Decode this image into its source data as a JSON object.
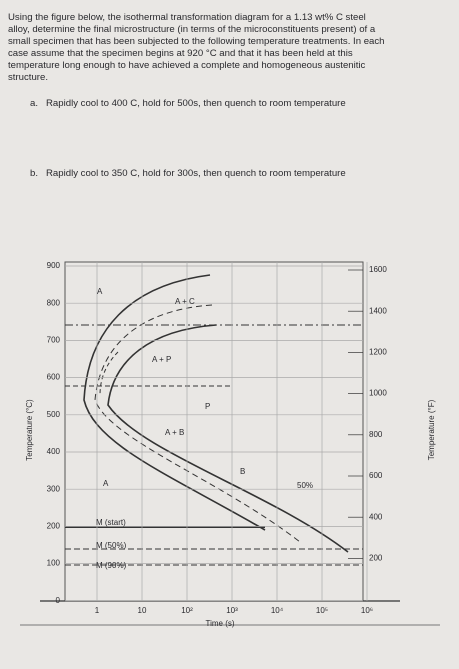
{
  "question": {
    "lines": [
      "Using the figure below, the isothermal transformation diagram for a 1.13 wt% C steel",
      "alloy, determine the final microstructure (in terms of the microconstituents present) of a",
      "small specimen that has been subjected to the following temperature treatments. In each",
      "case assume that the specimen begins at 920 °C and that it has been held at this",
      "temperature long enough to have achieved a complete and homogeneous austenitic",
      "structure."
    ],
    "parts": [
      {
        "label": "a.",
        "text": "Rapidly cool to 400 C, hold for 500s, then quench to room temperature"
      },
      {
        "label": "b.",
        "text": "Rapidly cool to 350 C, hold for 300s, then quench to room temperature"
      }
    ]
  },
  "figure": {
    "y_axis_label": "Temperature (°C)",
    "y2_axis_label": "Temperature (°F)",
    "x_axis_label": "Time (s)",
    "yticks": [
      "900",
      "800",
      "700",
      "600",
      "500",
      "400",
      "300",
      "200",
      "100",
      "0"
    ],
    "y2ticks": [
      "1600",
      "1400",
      "1200",
      "1000",
      "800",
      "600",
      "400",
      "200"
    ],
    "xticks": [
      "1",
      "10",
      "10²",
      "10³",
      "10⁴",
      "10⁵",
      "10⁶"
    ],
    "region_labels": [
      "A",
      "A + C",
      "A + P",
      "P",
      "A + B",
      "B",
      "A",
      "50%",
      "M (start)",
      "M (50%)",
      "M (90%)"
    ]
  }
}
